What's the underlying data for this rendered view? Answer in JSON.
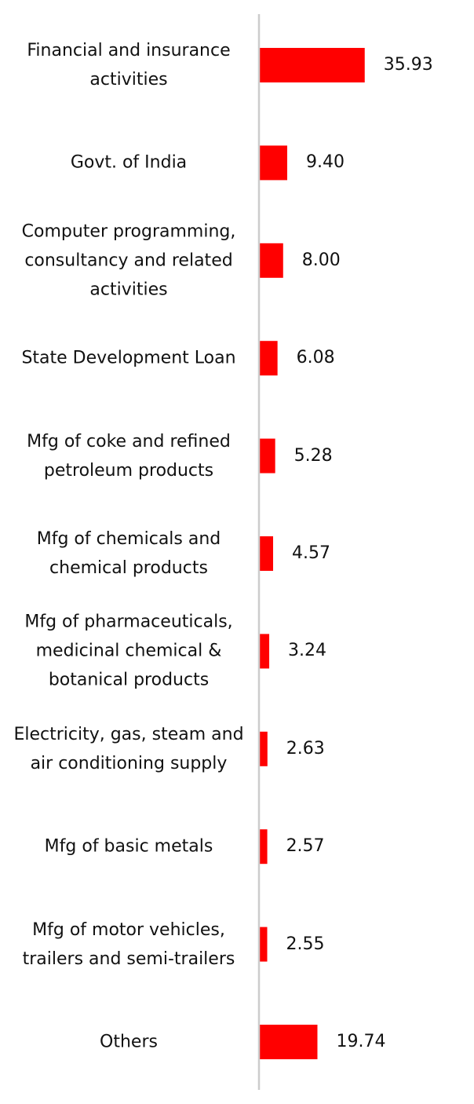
{
  "chart_data": {
    "type": "bar",
    "orientation": "horizontal",
    "categories": [
      "Financial and insurance\nactivities",
      "Govt. of India",
      "Computer programming,\nconsultancy and related\nactivities",
      "State Development Loan",
      "Mfg of coke and refined\npetroleum products",
      "Mfg of chemicals and\nchemical products",
      "Mfg of pharmaceuticals,\nmedicinal chemical &\nbotanical products",
      "Electricity, gas, steam and\nair conditioning supply",
      "Mfg of basic metals",
      "Mfg of motor vehicles,\ntrailers and semi-trailers",
      "Others"
    ],
    "values": [
      35.93,
      9.4,
      8.0,
      6.08,
      5.28,
      4.57,
      3.24,
      2.63,
      2.57,
      2.55,
      19.74
    ],
    "value_labels": [
      "35.93",
      "9.40",
      "8.00",
      "6.08",
      "5.28",
      "4.57",
      "3.24",
      "2.63",
      "2.57",
      "2.55",
      "19.74"
    ],
    "xlim": [
      0,
      36
    ],
    "grid": false,
    "legend": "none",
    "colors": {
      "bar": "#ff0000",
      "axis": "#cccccc",
      "text": "#111111"
    }
  }
}
